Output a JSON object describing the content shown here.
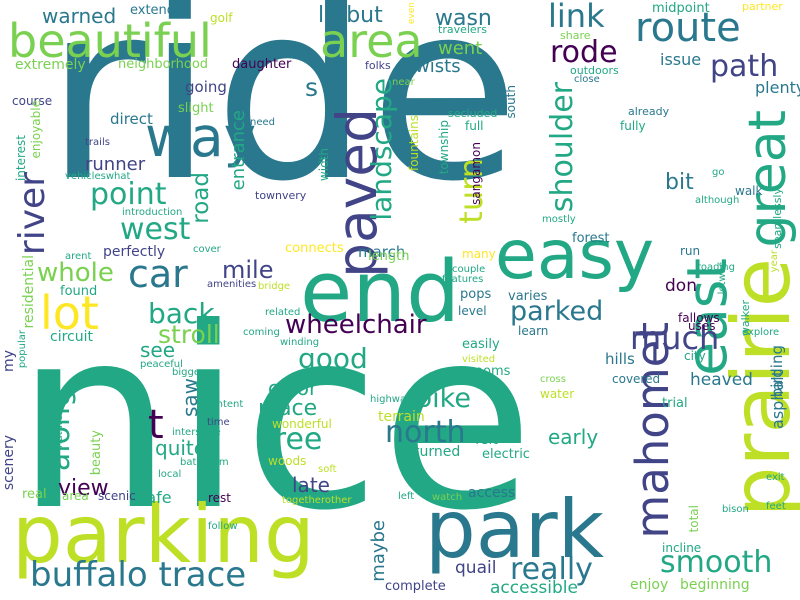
{
  "palette": {
    "background": "#ffffff",
    "dark_purple": "#440154",
    "indigo": "#414487",
    "blue": "#2a788e",
    "teal": "#22a884",
    "green": "#7ad151",
    "lime": "#bddf26",
    "yellow": "#fde725"
  },
  "words": [
    "ride",
    "nice",
    "parking",
    "park",
    "end",
    "easy",
    "prairie",
    "beautiful",
    "area",
    "route",
    "way",
    "paved",
    "great",
    "buffalo trace",
    "mahomet",
    "east",
    "car",
    "lot",
    "wheelchair",
    "north",
    "bike",
    "parked",
    "smooth",
    "really",
    "along",
    "river",
    "point",
    "west",
    "link",
    "rode",
    "path",
    "turn",
    "shoulder",
    "landscape",
    "tree",
    "good",
    "place",
    "back",
    "stroll",
    "mile",
    "whole",
    "much",
    "view",
    "see",
    "saw",
    "quite",
    "color",
    "early",
    "late",
    "maybe",
    "warned",
    "extends",
    "golf",
    "lotbut",
    "wasn",
    "midpoint",
    "partner",
    "extremely",
    "neighborhood",
    "daughter",
    "going",
    "slight",
    "direct",
    "runner",
    "entrance",
    "road",
    "went",
    "twists",
    "issue",
    "plenty",
    "bit",
    "walk",
    "asphalt",
    "birding",
    "heaved",
    "don",
    "uses",
    "fallows",
    "hills",
    "pops",
    "level",
    "march",
    "forest",
    "run",
    "many",
    "varies",
    "learn",
    "city",
    "covered",
    "residential",
    "scenery",
    "my",
    "circuit",
    "perfectly",
    "found",
    "easily",
    "rooms",
    "water",
    "trial",
    "access",
    "returned",
    "felt",
    "wonderful",
    "woods",
    "beauty",
    "safe",
    "rest",
    "real",
    "area",
    "scenic",
    "quail",
    "accessible",
    "complete",
    "incline",
    "enjoy",
    "beginning",
    "total",
    "fully",
    "full",
    "township",
    "sangamon",
    "fountains",
    "length",
    "connects",
    "south",
    "share",
    "outdoors",
    "close",
    "already",
    "secluded",
    "near",
    "folks",
    "travelers",
    "even",
    "course",
    "interest",
    "enjoyable",
    "trails",
    "need",
    "width",
    "townvery",
    "introduction",
    "vehicleswhat",
    "although",
    "seamlessly",
    "go",
    "mostly",
    "cover",
    "arent",
    "couple",
    "features",
    "amenities",
    "bridge",
    "related",
    "coming",
    "winding",
    "peaceful",
    "bigger",
    "right",
    "content",
    "time",
    "interstate",
    "bathroom",
    "nature",
    "popular",
    "local",
    "soft",
    "electric",
    "highway",
    "visited",
    "cross",
    "left",
    "watch",
    "togetherother",
    "follow",
    "exit",
    "feet",
    "bison",
    "walker",
    "explore",
    "roading",
    "lotwas",
    "year",
    "terrain",
    "t",
    "s"
  ]
}
